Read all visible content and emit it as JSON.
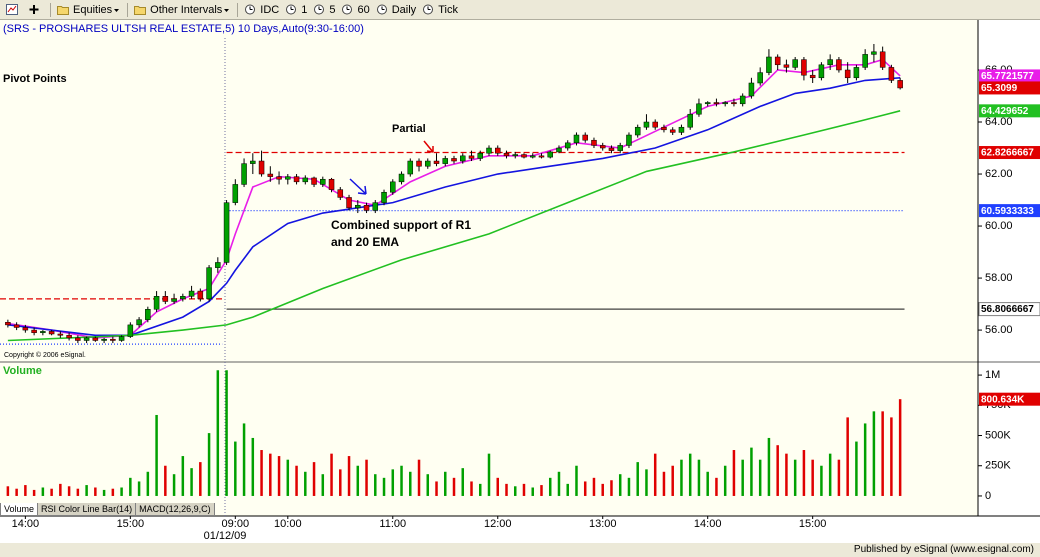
{
  "toolbar": {
    "items": [
      "Equities",
      "Other Intervals",
      "IDC",
      "1",
      "5",
      "60",
      "Daily",
      "Tick"
    ]
  },
  "chart_data": [
    {
      "type": "candlestick",
      "title": "(SRS - PROSHARES ULTSH REAL ESTATE,5) 10 Days,Auto(9:30-16:00)",
      "subtitle": "Pivot Points",
      "copyright": "Copyright © 2006 eSignal.",
      "annotations": [
        "Partial",
        "Combined support of R1",
        "and 20 EMA"
      ],
      "up_color": "#00a000",
      "down_color": "#e00000",
      "last_tag": true,
      "xlim": [
        -0.9,
        110.9
      ],
      "ylim": [
        54.85,
        67.23
      ],
      "yticks": [
        {
          "value": 56,
          "label": "56.00"
        },
        {
          "value": 58,
          "label": "58.00"
        },
        {
          "value": 60,
          "label": "60.00"
        },
        {
          "value": 62,
          "label": "62.00"
        },
        {
          "value": 64,
          "label": "64.00"
        },
        {
          "value": 66,
          "label": "66.00"
        }
      ],
      "ohlc": [
        [
          56.3,
          56.4,
          56.1,
          56.2
        ],
        [
          56.2,
          56.3,
          56.0,
          56.1
        ],
        [
          56.1,
          56.2,
          55.9,
          56.0
        ],
        [
          56.0,
          56.1,
          55.8,
          55.9
        ],
        [
          55.9,
          56.0,
          55.8,
          55.95
        ],
        [
          55.95,
          56.0,
          55.8,
          55.85
        ],
        [
          55.85,
          55.95,
          55.7,
          55.8
        ],
        [
          55.8,
          55.9,
          55.6,
          55.7
        ],
        [
          55.7,
          55.8,
          55.5,
          55.6
        ],
        [
          55.6,
          55.75,
          55.5,
          55.7
        ],
        [
          55.7,
          55.75,
          55.55,
          55.6
        ],
        [
          55.6,
          55.7,
          55.5,
          55.65
        ],
        [
          55.65,
          55.75,
          55.5,
          55.6
        ],
        [
          55.6,
          55.8,
          55.55,
          55.75
        ],
        [
          55.75,
          56.3,
          55.7,
          56.2
        ],
        [
          56.2,
          56.5,
          56.1,
          56.4
        ],
        [
          56.4,
          56.9,
          56.3,
          56.8
        ],
        [
          56.8,
          57.5,
          56.7,
          57.3
        ],
        [
          57.3,
          57.5,
          57.0,
          57.1
        ],
        [
          57.1,
          57.4,
          57.0,
          57.2
        ],
        [
          57.2,
          57.4,
          57.1,
          57.3
        ],
        [
          57.3,
          57.7,
          57.2,
          57.5
        ],
        [
          57.5,
          57.6,
          57.1,
          57.2
        ],
        [
          57.2,
          58.5,
          57.1,
          58.4
        ],
        [
          58.4,
          58.8,
          58.2,
          58.6
        ],
        [
          58.6,
          61.0,
          58.5,
          60.9
        ],
        [
          60.9,
          61.8,
          60.8,
          61.6
        ],
        [
          61.6,
          62.6,
          61.5,
          62.4
        ],
        [
          62.4,
          62.8,
          62.0,
          62.5
        ],
        [
          62.5,
          62.9,
          61.9,
          62.0
        ],
        [
          62.0,
          62.3,
          61.7,
          61.9
        ],
        [
          61.9,
          62.1,
          61.6,
          61.8
        ],
        [
          61.8,
          62.0,
          61.6,
          61.9
        ],
        [
          61.9,
          62.0,
          61.6,
          61.7
        ],
        [
          61.7,
          61.95,
          61.6,
          61.85
        ],
        [
          61.85,
          61.9,
          61.5,
          61.6
        ],
        [
          61.6,
          61.9,
          61.5,
          61.8
        ],
        [
          61.8,
          61.85,
          61.3,
          61.4
        ],
        [
          61.4,
          61.5,
          61.0,
          61.1
        ],
        [
          61.1,
          61.2,
          60.6,
          60.7
        ],
        [
          60.7,
          61.0,
          60.5,
          60.8
        ],
        [
          60.8,
          60.9,
          60.5,
          60.6
        ],
        [
          60.6,
          61.0,
          60.5,
          60.9
        ],
        [
          60.9,
          61.4,
          60.8,
          61.3
        ],
        [
          61.3,
          61.8,
          61.2,
          61.7
        ],
        [
          61.7,
          62.1,
          61.6,
          62.0
        ],
        [
          62.0,
          62.6,
          61.9,
          62.5
        ],
        [
          62.5,
          62.6,
          62.1,
          62.3
        ],
        [
          62.3,
          62.6,
          62.2,
          62.5
        ],
        [
          62.5,
          62.8,
          62.3,
          62.4
        ],
        [
          62.4,
          62.7,
          62.3,
          62.6
        ],
        [
          62.6,
          62.7,
          62.4,
          62.5
        ],
        [
          62.5,
          62.8,
          62.4,
          62.7
        ],
        [
          62.7,
          62.9,
          62.5,
          62.6
        ],
        [
          62.6,
          62.9,
          62.5,
          62.8
        ],
        [
          62.8,
          63.1,
          62.7,
          63.0
        ],
        [
          63.0,
          63.1,
          62.7,
          62.8
        ],
        [
          62.8,
          62.9,
          62.6,
          62.7
        ],
        [
          62.7,
          62.85,
          62.6,
          62.75
        ],
        [
          62.75,
          62.8,
          62.6,
          62.65
        ],
        [
          62.65,
          62.8,
          62.6,
          62.7
        ],
        [
          62.7,
          62.8,
          62.6,
          62.65
        ],
        [
          62.65,
          62.9,
          62.6,
          62.85
        ],
        [
          62.85,
          63.1,
          62.8,
          63.0
        ],
        [
          63.0,
          63.3,
          62.9,
          63.2
        ],
        [
          63.2,
          63.6,
          63.1,
          63.5
        ],
        [
          63.5,
          63.6,
          63.2,
          63.3
        ],
        [
          63.3,
          63.4,
          63.0,
          63.1
        ],
        [
          63.1,
          63.2,
          62.9,
          63.0
        ],
        [
          63.0,
          63.1,
          62.8,
          62.9
        ],
        [
          62.9,
          63.2,
          62.8,
          63.1
        ],
        [
          63.1,
          63.6,
          63.0,
          63.5
        ],
        [
          63.5,
          63.9,
          63.4,
          63.8
        ],
        [
          63.8,
          64.3,
          63.7,
          64.0
        ],
        [
          64.0,
          64.1,
          63.7,
          63.8
        ],
        [
          63.8,
          63.9,
          63.6,
          63.7
        ],
        [
          63.7,
          63.8,
          63.5,
          63.6
        ],
        [
          63.6,
          63.9,
          63.5,
          63.8
        ],
        [
          63.8,
          64.5,
          63.7,
          64.3
        ],
        [
          64.3,
          64.9,
          64.2,
          64.7
        ],
        [
          64.7,
          64.8,
          64.6,
          64.75
        ],
        [
          64.75,
          64.9,
          64.6,
          64.7
        ],
        [
          64.7,
          64.8,
          64.6,
          64.75
        ],
        [
          64.75,
          64.9,
          64.6,
          64.7
        ],
        [
          64.7,
          65.1,
          64.6,
          65.0
        ],
        [
          65.0,
          65.7,
          64.9,
          65.5
        ],
        [
          65.5,
          66.1,
          65.4,
          65.9
        ],
        [
          65.9,
          66.8,
          65.8,
          66.5
        ],
        [
          66.5,
          66.6,
          66.0,
          66.2
        ],
        [
          66.2,
          66.4,
          65.9,
          66.1
        ],
        [
          66.1,
          66.5,
          66.0,
          66.4
        ],
        [
          66.4,
          66.5,
          65.6,
          65.8
        ],
        [
          65.8,
          66.0,
          65.5,
          65.7
        ],
        [
          65.7,
          66.3,
          65.6,
          66.2
        ],
        [
          66.2,
          66.6,
          66.0,
          66.4
        ],
        [
          66.4,
          66.5,
          65.9,
          66.0
        ],
        [
          66.0,
          66.3,
          65.5,
          65.7
        ],
        [
          65.7,
          66.2,
          65.6,
          66.1
        ],
        [
          66.1,
          66.8,
          66.0,
          66.6
        ],
        [
          66.6,
          67.0,
          66.3,
          66.7
        ],
        [
          66.7,
          66.9,
          66.0,
          66.1
        ],
        [
          66.1,
          66.2,
          65.5,
          65.6
        ],
        [
          65.6,
          65.7,
          65.25,
          65.3099
        ]
      ],
      "series": [
        {
          "color": "#e81ee8",
          "tag": true,
          "x": [
            0,
            5,
            10,
            14,
            17,
            20,
            23,
            25,
            26,
            28,
            31,
            35,
            39,
            42,
            46,
            50,
            55,
            60,
            65,
            70,
            75,
            80,
            85,
            88,
            91,
            95,
            98,
            100,
            102
          ],
          "values": [
            56.25,
            56.0,
            55.7,
            55.8,
            56.7,
            57.2,
            57.6,
            58.7,
            59.7,
            61.5,
            61.9,
            61.8,
            61.0,
            60.8,
            61.7,
            62.3,
            62.7,
            62.7,
            63.2,
            63.0,
            63.8,
            64.6,
            65.0,
            66.0,
            65.9,
            66.2,
            66.2,
            66.4,
            65.7721577
          ]
        },
        {
          "color": "#1414e0",
          "x": [
            0,
            10,
            14,
            20,
            23,
            25,
            26,
            28,
            32,
            36,
            40,
            44,
            50,
            56,
            62,
            68,
            74,
            80,
            86,
            90,
            94,
            98,
            102
          ],
          "values": [
            56.2,
            55.8,
            55.8,
            56.5,
            57.1,
            57.8,
            58.3,
            59.2,
            60.1,
            60.5,
            60.7,
            60.9,
            61.5,
            62.0,
            62.3,
            62.6,
            63.0,
            63.7,
            64.6,
            65.1,
            65.3,
            65.6,
            65.7
          ]
        },
        {
          "color": "#22c022",
          "tag": true,
          "x": [
            0,
            14,
            20,
            25,
            28,
            36,
            45,
            55,
            64,
            73,
            83,
            91,
            97,
            102
          ],
          "values": [
            55.6,
            55.8,
            56.0,
            56.2,
            56.5,
            57.6,
            58.7,
            59.7,
            60.9,
            62.1,
            62.85,
            63.5,
            64.0,
            64.429652
          ]
        }
      ],
      "levels": [
        {
          "color": "#e00000",
          "dash": "6 3",
          "x": [
            -0.9,
            24.5
          ],
          "value": 57.2
        },
        {
          "color": "#2040ff",
          "dash": "1 2",
          "x": [
            -0.9,
            24.5
          ],
          "value": 55.46
        },
        {
          "color": "#e00000",
          "dash": "6 3",
          "x": [
            25,
            102.5
          ],
          "value": 62.8266667,
          "tag": true
        },
        {
          "color": "#2040ff",
          "dash": "1 2",
          "x": [
            25,
            102.5
          ],
          "value": 60.5933333,
          "tag": true
        },
        {
          "color": "#404040",
          "dash": "none",
          "x": [
            25,
            102.5
          ],
          "value": 56.8066667,
          "tag": true,
          "tag_color": "#ffffff"
        }
      ]
    },
    {
      "type": "bar",
      "title": "Volume",
      "up_color": "#00a000",
      "down_color": "#e00000",
      "xlim": [
        -0.9,
        110.9
      ],
      "ylim": [
        -50000,
        1100000
      ],
      "yticks": [
        0,
        {
          "value": 250000,
          "label": "250K"
        },
        {
          "value": 500000,
          "label": "500K"
        },
        {
          "value": 750000,
          "label": "750K"
        },
        {
          "value": 1000000,
          "label": "1M"
        }
      ],
      "xticks": [
        {
          "value": 2,
          "label": "14:00"
        },
        {
          "value": 14,
          "label": "15:00"
        },
        {
          "value": 26,
          "label": "09:00"
        },
        {
          "value": 32,
          "label": "10:00"
        },
        {
          "value": 44,
          "label": "11:00"
        },
        {
          "value": 56,
          "label": "12:00"
        },
        {
          "value": 68,
          "label": "13:00"
        },
        {
          "value": 80,
          "label": "14:00"
        },
        {
          "value": 92,
          "label": "15:00"
        }
      ],
      "date_label": "01/12/09",
      "values": [
        80000,
        60000,
        90000,
        50000,
        70000,
        60000,
        100000,
        80000,
        60000,
        90000,
        70000,
        50000,
        60000,
        70000,
        150000,
        120000,
        200000,
        670000,
        250000,
        180000,
        330000,
        230000,
        280000,
        520000,
        1040000,
        1040000,
        450000,
        600000,
        480000,
        380000,
        350000,
        330000,
        300000,
        250000,
        200000,
        280000,
        180000,
        350000,
        220000,
        330000,
        250000,
        300000,
        180000,
        150000,
        220000,
        250000,
        200000,
        300000,
        180000,
        120000,
        200000,
        150000,
        230000,
        120000,
        100000,
        350000,
        150000,
        100000,
        80000,
        100000,
        70000,
        90000,
        150000,
        200000,
        100000,
        250000,
        120000,
        150000,
        100000,
        130000,
        180000,
        150000,
        280000,
        220000,
        350000,
        200000,
        250000,
        300000,
        350000,
        300000,
        200000,
        150000,
        250000,
        380000,
        300000,
        400000,
        300000,
        480000,
        420000,
        350000,
        300000,
        380000,
        300000,
        250000,
        350000,
        300000,
        650000,
        450000,
        600000,
        700000,
        700000,
        650000,
        800634
      ],
      "value_labels": [
        null,
        null,
        null,
        null,
        null,
        null,
        null,
        null,
        null,
        null,
        null,
        null,
        null,
        null,
        null,
        null,
        null,
        null,
        null,
        null,
        null,
        null,
        null,
        null,
        null,
        null,
        null,
        null,
        null,
        null,
        null,
        null,
        null,
        null,
        null,
        null,
        null,
        null,
        null,
        null,
        null,
        null,
        null,
        null,
        null,
        null,
        null,
        null,
        null,
        null,
        null,
        null,
        null,
        null,
        null,
        null,
        null,
        null,
        null,
        null,
        null,
        null,
        null,
        null,
        null,
        null,
        null,
        null,
        null,
        null,
        null,
        null,
        null,
        null,
        null,
        null,
        null,
        null,
        null,
        null,
        null,
        null,
        null,
        null,
        null,
        null,
        null,
        null,
        null,
        null,
        null,
        null,
        null,
        null,
        null,
        null,
        null,
        null,
        null,
        null,
        null,
        null,
        "800.634K"
      ]
    }
  ],
  "tabs": [
    "Volume",
    "RSI Color Line Bar(14)",
    "MACD(12,26,9,C)"
  ],
  "footer": "Published by eSignal (www.esignal.com)"
}
